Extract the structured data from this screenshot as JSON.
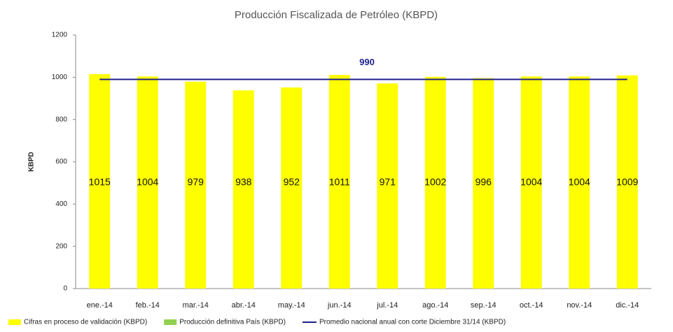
{
  "chart_data": {
    "type": "bar",
    "title": "Producción Fiscalizada de Petróleo (KBPD)",
    "y_label": "KBPD",
    "categories": [
      "ene.-14",
      "feb.-14",
      "mar.-14",
      "abr.-14",
      "may.-14",
      "jun.-14",
      "jul.-14",
      "ago.-14",
      "sep.-14",
      "oct.-14",
      "nov.-14",
      "dic.-14"
    ],
    "series": [
      {
        "name": "Cifras en proceso de validación (KBPD)",
        "color": "#ffff00",
        "values": [
          1015,
          1004,
          979,
          938,
          952,
          1011,
          971,
          1002,
          996,
          1004,
          1004,
          1009
        ]
      },
      {
        "name": "Producción definitiva País (KBPD)",
        "color": "#92d050",
        "values": [
          null,
          null,
          null,
          null,
          null,
          null,
          null,
          null,
          null,
          null,
          null,
          null
        ]
      }
    ],
    "average": {
      "name": "Promedio nacional anual con corte Diciembre 31/14 (KBPD)",
      "color": "#1f1f8f",
      "value": 990
    },
    "ylim": [
      0,
      1200
    ],
    "yticks": [
      0,
      200,
      400,
      600,
      800,
      1000,
      1200
    ],
    "grid": false
  }
}
